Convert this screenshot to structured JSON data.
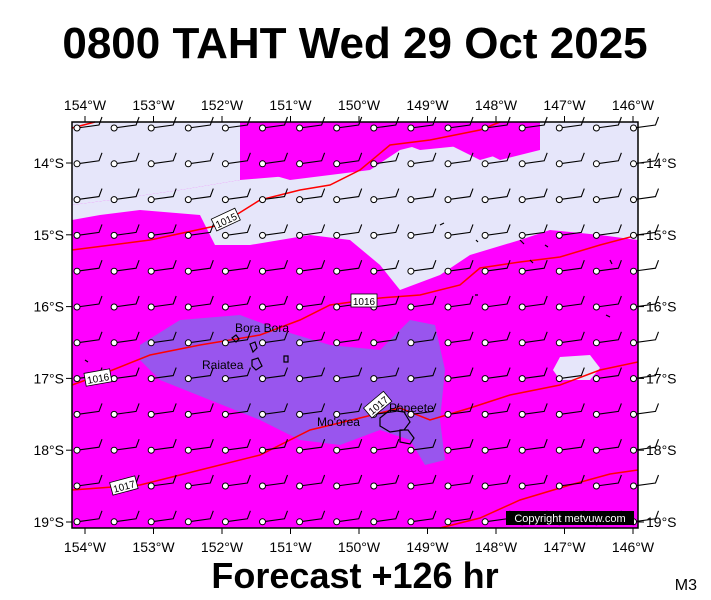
{
  "header": {
    "title": "0800 TAHT Wed 29 Oct 2025"
  },
  "footer": {
    "forecast": "Forecast +126 hr",
    "code": "M3",
    "copyright": "Copyright metvuw.com"
  },
  "map": {
    "longitudes": [
      "154°W",
      "153°W",
      "152°W",
      "151°W",
      "150°W",
      "149°W",
      "148°W",
      "147°W",
      "146°W"
    ],
    "latitudes": [
      "14°S",
      "15°S",
      "16°S",
      "17°S",
      "18°S",
      "19°S"
    ],
    "places": [
      "Bora Bora",
      "Raiatea",
      "Mo'orea",
      "Papeete"
    ],
    "isobar_labels": [
      "1015",
      "1016",
      "1016",
      "1017",
      "1017"
    ]
  }
}
